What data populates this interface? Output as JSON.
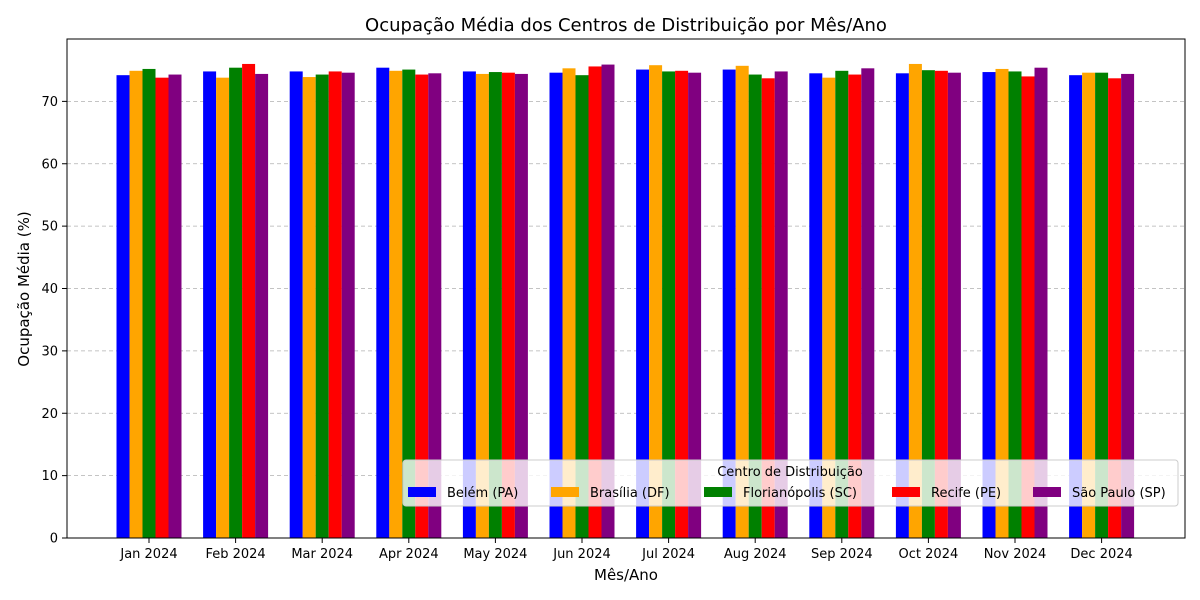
{
  "chart_data": {
    "type": "bar",
    "title": "Ocupação Média dos Centros de Distribuição por Mês/Ano",
    "xlabel": "Mês/Ano",
    "ylabel": "Ocupação Média (%)",
    "ylim": [
      0,
      80
    ],
    "yticks": [
      0,
      10,
      20,
      30,
      40,
      50,
      60,
      70
    ],
    "grid": "y dashed",
    "legend_title": "Centro de Distribuição",
    "legend_position": "lower-right",
    "categories": [
      "Jan 2024",
      "Feb 2024",
      "Mar 2024",
      "Apr 2024",
      "May 2024",
      "Jun 2024",
      "Jul 2024",
      "Aug 2024",
      "Sep 2024",
      "Oct 2024",
      "Nov 2024",
      "Dec 2024"
    ],
    "series": [
      {
        "name": "Belém (PA)",
        "color": "#0000ff",
        "values": [
          74.2,
          74.8,
          74.8,
          75.4,
          74.8,
          74.6,
          75.1,
          75.1,
          74.5,
          74.5,
          74.7,
          74.2
        ]
      },
      {
        "name": "Brasília (DF)",
        "color": "#ffa500",
        "values": [
          74.9,
          73.8,
          73.9,
          74.9,
          74.4,
          75.3,
          75.8,
          75.7,
          73.8,
          76.0,
          75.2,
          74.6
        ]
      },
      {
        "name": "Florianópolis (SC)",
        "color": "#008000",
        "values": [
          75.2,
          75.4,
          74.3,
          75.1,
          74.7,
          74.2,
          74.8,
          74.3,
          74.9,
          75.0,
          74.8,
          74.6
        ]
      },
      {
        "name": "Recife (PE)",
        "color": "#ff0000",
        "values": [
          73.8,
          76.0,
          74.8,
          74.3,
          74.6,
          75.6,
          74.9,
          73.7,
          74.3,
          74.9,
          74.0,
          73.7
        ]
      },
      {
        "name": "São Paulo (SP)",
        "color": "#800080",
        "values": [
          74.3,
          74.4,
          74.6,
          74.5,
          74.4,
          75.9,
          74.6,
          74.8,
          75.3,
          74.6,
          75.4,
          74.4
        ]
      }
    ]
  }
}
